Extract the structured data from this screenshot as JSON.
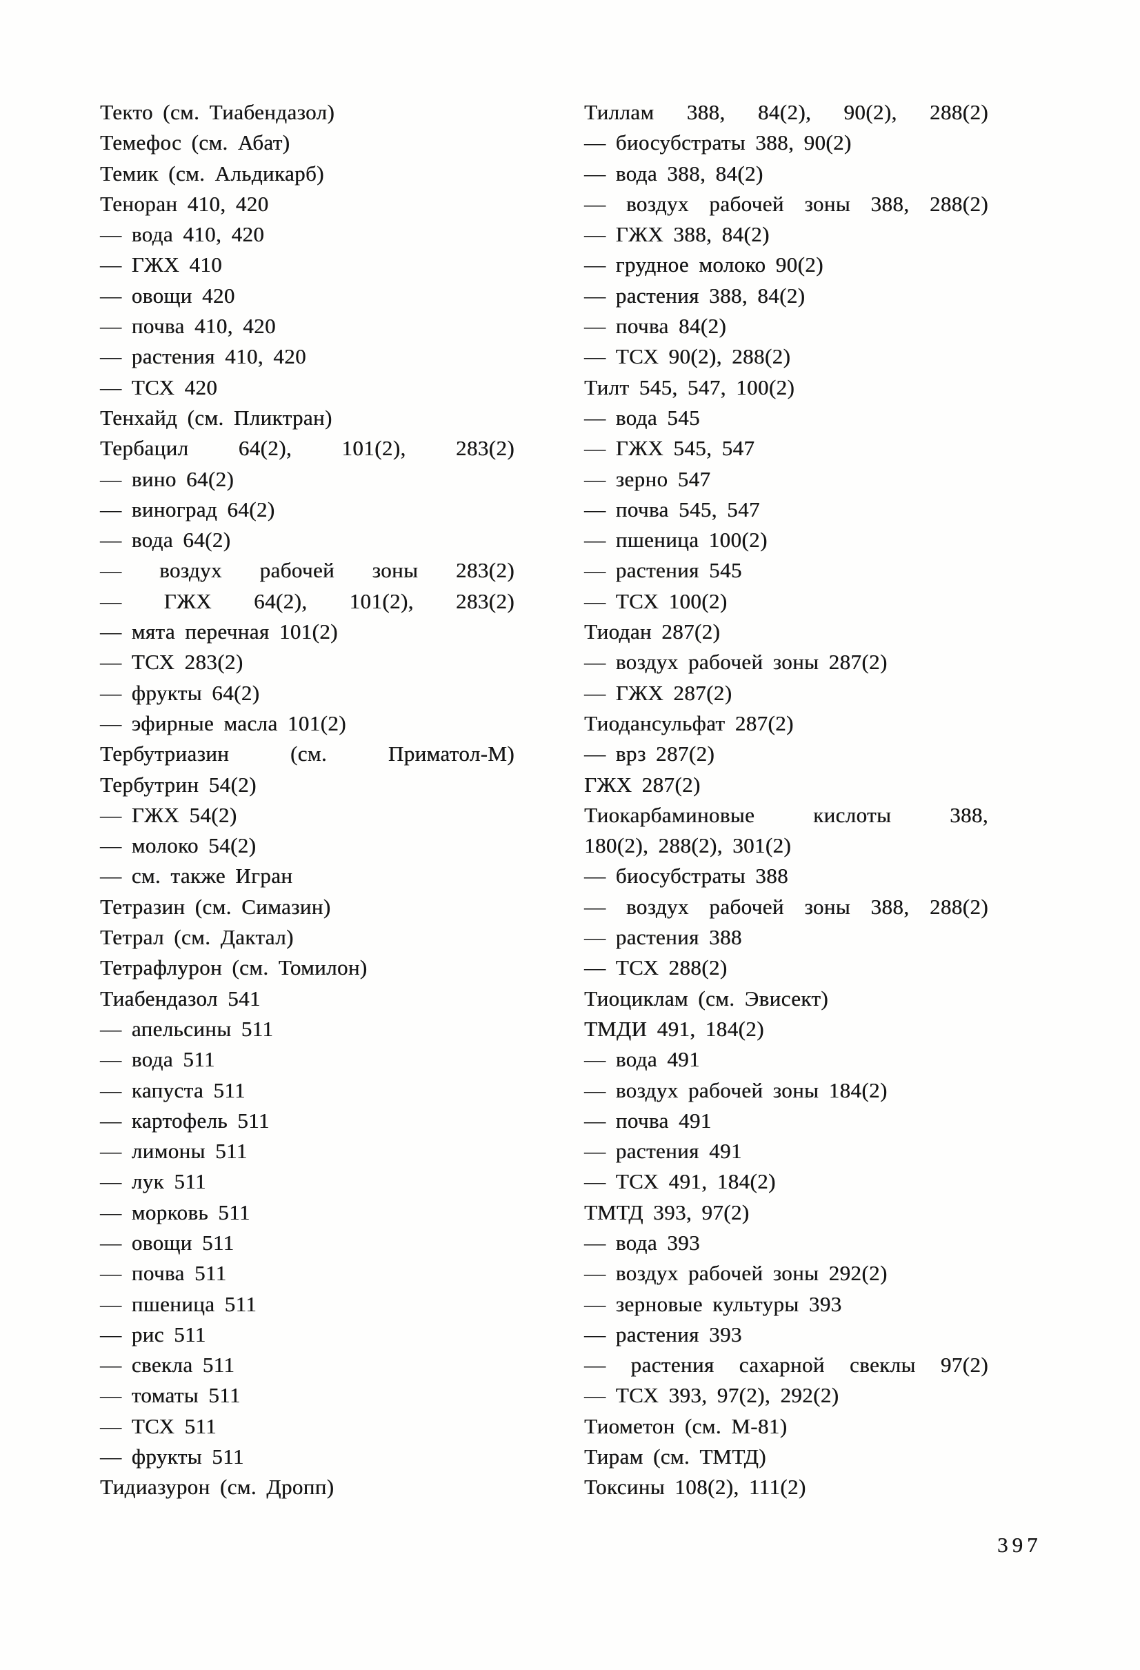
{
  "page": {
    "number": "397"
  },
  "columns": {
    "left": {
      "lines": [
        {
          "text": "Текто (см. Тиабендазол)"
        },
        {
          "text": "Темефос (см. Абат)"
        },
        {
          "text": "Темик (см. Альдикарб)"
        },
        {
          "text": "Теноран 410, 420"
        },
        {
          "text": "— вода 410, 420"
        },
        {
          "text": "— ГЖХ 410"
        },
        {
          "text": "— овощи 420"
        },
        {
          "text": "— почва 410, 420"
        },
        {
          "text": "— растения 410, 420"
        },
        {
          "text": "— ТСХ 420"
        },
        {
          "text": "Тенхайд (см. Пликтран)"
        },
        {
          "text": "Тербацил 64(2), 101(2), 283(2)",
          "spread": true
        },
        {
          "text": "— вино 64(2)"
        },
        {
          "text": "— виноград 64(2)"
        },
        {
          "text": "— вода 64(2)"
        },
        {
          "text": "— воздух рабочей зоны 283(2)",
          "spread": true
        },
        {
          "text": "— ГЖХ 64(2), 101(2), 283(2)",
          "spread": true
        },
        {
          "text": "— мята перечная 101(2)"
        },
        {
          "text": "— ТСХ 283(2)"
        },
        {
          "text": "— фрукты 64(2)"
        },
        {
          "text": "— эфирные масла 101(2)"
        },
        {
          "text": "Тербутриазин (см. Приматол-М)",
          "spread": true
        },
        {
          "text": "Тербутрин 54(2)"
        },
        {
          "text": "— ГЖХ 54(2)"
        },
        {
          "text": "— молоко 54(2)"
        },
        {
          "text": "— см. также Игран"
        },
        {
          "text": "Тетразин (см. Симазин)"
        },
        {
          "text": "Тетрал (см. Дактал)"
        },
        {
          "text": "Тетрафлурон (см. Томилон)"
        },
        {
          "text": "Тиабендазол 541"
        },
        {
          "text": "— апельсины 511"
        },
        {
          "text": "— вода 511"
        },
        {
          "text": "— капуста 511"
        },
        {
          "text": "— картофель 511"
        },
        {
          "text": "— лимоны 511"
        },
        {
          "text": "— лук 511"
        },
        {
          "text": "— морковь 511"
        },
        {
          "text": "— овощи 511"
        },
        {
          "text": "— почва 511"
        },
        {
          "text": "— пшеница 511"
        },
        {
          "text": "— рис 511"
        },
        {
          "text": "— свекла 511"
        },
        {
          "text": "— томаты 511"
        },
        {
          "text": "— ТСХ 511"
        },
        {
          "text": "— фрукты 511"
        },
        {
          "text": "Тидиазурон (см. Дропп)"
        }
      ]
    },
    "right": {
      "lines": [
        {
          "text": "Тиллам 388, 84(2), 90(2), 288(2)",
          "spread": true
        },
        {
          "text": "— биосубстраты 388, 90(2)"
        },
        {
          "text": "— вода 388, 84(2)"
        },
        {
          "text": "— воздух рабочей зоны 388, 288(2)",
          "spread": true
        },
        {
          "text": "— ГЖХ 388, 84(2)"
        },
        {
          "text": "— грудное молоко 90(2)"
        },
        {
          "text": "— растения 388, 84(2)"
        },
        {
          "text": "— почва 84(2)"
        },
        {
          "text": "— ТСХ 90(2), 288(2)"
        },
        {
          "text": "Тилт 545, 547, 100(2)"
        },
        {
          "text": "— вода 545"
        },
        {
          "text": "— ГЖХ 545, 547"
        },
        {
          "text": "— зерно 547"
        },
        {
          "text": "— почва 545, 547"
        },
        {
          "text": "— пшеница 100(2)"
        },
        {
          "text": "— растения 545"
        },
        {
          "text": "— ТСХ 100(2)"
        },
        {
          "text": "Тиодан 287(2)"
        },
        {
          "text": "— воздух рабочей зоны 287(2)"
        },
        {
          "text": "— ГЖХ 287(2)"
        },
        {
          "text": "Тиодансульфат 287(2)"
        },
        {
          "text": "— врз 287(2)"
        },
        {
          "text": "ГЖХ 287(2)"
        },
        {
          "text": "Тиокарбаминовые кислоты 388,",
          "spread": true
        },
        {
          "text": "180(2), 288(2), 301(2)"
        },
        {
          "text": "— биосубстраты 388"
        },
        {
          "text": "— воздух рабочей зоны 388, 288(2)",
          "spread": true
        },
        {
          "text": "— растения 388"
        },
        {
          "text": "— ТСХ 288(2)"
        },
        {
          "text": "Тиоциклам (см. Эвисект)"
        },
        {
          "text": "ТМДИ 491, 184(2)"
        },
        {
          "text": "— вода 491"
        },
        {
          "text": "— воздух рабочей зоны 184(2)"
        },
        {
          "text": "— почва 491"
        },
        {
          "text": "— растения 491"
        },
        {
          "text": "— ТСХ 491, 184(2)"
        },
        {
          "text": "ТМТД 393, 97(2)"
        },
        {
          "text": "— вода 393"
        },
        {
          "text": "— воздух рабочей зоны 292(2)"
        },
        {
          "text": "— зерновые культуры 393"
        },
        {
          "text": "— растения 393"
        },
        {
          "text": "— растения сахарной свеклы 97(2)",
          "spread": true
        },
        {
          "text": "— ТСХ 393, 97(2), 292(2)"
        },
        {
          "text": "Тиометон (см. М-81)"
        },
        {
          "text": "Тирам (см. ТМТД)"
        },
        {
          "text": "Токсины 108(2), 111(2)"
        }
      ]
    }
  }
}
